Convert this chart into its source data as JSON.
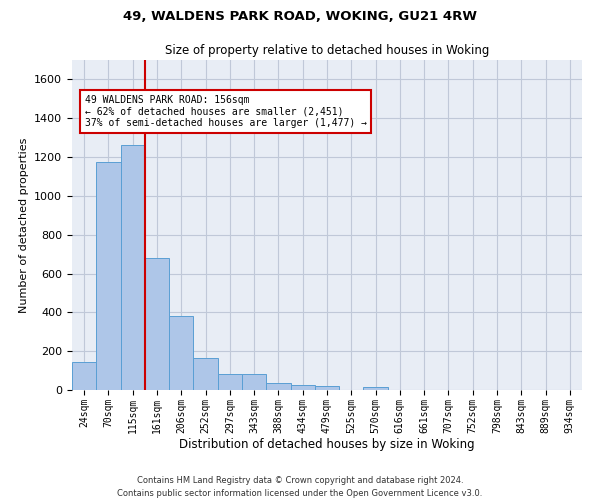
{
  "title": "49, WALDENS PARK ROAD, WOKING, GU21 4RW",
  "subtitle": "Size of property relative to detached houses in Woking",
  "xlabel": "Distribution of detached houses by size in Woking",
  "ylabel": "Number of detached properties",
  "bar_color": "#aec6e8",
  "bar_edge_color": "#5a9fd4",
  "grid_color": "#c0c8d8",
  "background_color": "#e8edf5",
  "categories": [
    "24sqm",
    "70sqm",
    "115sqm",
    "161sqm",
    "206sqm",
    "252sqm",
    "297sqm",
    "343sqm",
    "388sqm",
    "434sqm",
    "479sqm",
    "525sqm",
    "570sqm",
    "616sqm",
    "661sqm",
    "707sqm",
    "752sqm",
    "798sqm",
    "843sqm",
    "889sqm",
    "934sqm"
  ],
  "values": [
    145,
    1175,
    1260,
    680,
    380,
    165,
    80,
    80,
    35,
    25,
    20,
    0,
    15,
    0,
    0,
    0,
    0,
    0,
    0,
    0,
    0
  ],
  "ylim": [
    0,
    1700
  ],
  "yticks": [
    0,
    200,
    400,
    600,
    800,
    1000,
    1200,
    1400,
    1600
  ],
  "property_line_x": 2.5,
  "annotation_text": "49 WALDENS PARK ROAD: 156sqm\n← 62% of detached houses are smaller (2,451)\n37% of semi-detached houses are larger (1,477) →",
  "annotation_box_color": "#ffffff",
  "annotation_edge_color": "#cc0000",
  "vline_color": "#cc0000",
  "footer_line1": "Contains HM Land Registry data © Crown copyright and database right 2024.",
  "footer_line2": "Contains public sector information licensed under the Open Government Licence v3.0."
}
